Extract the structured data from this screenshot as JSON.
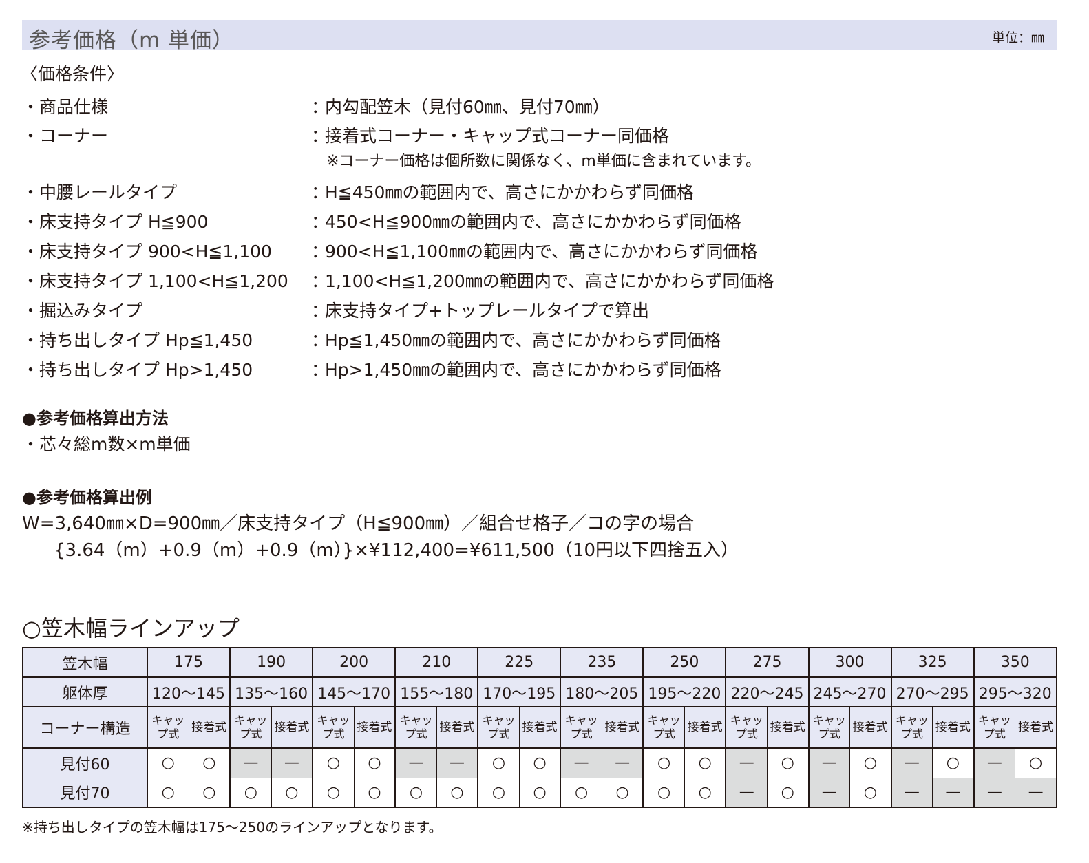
{
  "header": {
    "title": "参考価格（m 単価）",
    "unit": "単位：㎜"
  },
  "conditions": {
    "heading": "〈価格条件〉",
    "items": [
      {
        "label": "・商品仕様",
        "value": "内勾配笠木（見付60㎜、見付70㎜）"
      },
      {
        "label": "・コーナー",
        "value": "接着式コーナー・キャップ式コーナー同価格"
      },
      {
        "label": "・中腰レールタイプ",
        "value": "H≦450㎜の範囲内で、高さにかかわらず同価格"
      },
      {
        "label": "・床支持タイプ H≦900",
        "value": "450<H≦900㎜の範囲内で、高さにかかわらず同価格"
      },
      {
        "label": "・床支持タイプ 900<H≦1,100",
        "value": "900<H≦1,100㎜の範囲内で、高さにかかわらず同価格"
      },
      {
        "label": "・床支持タイプ 1,100<H≦1,200",
        "value": "1,100<H≦1,200㎜の範囲内で、高さにかかわらず同価格"
      },
      {
        "label": "・掘込みタイプ",
        "value": "床支持タイプ+トップレールタイプで算出"
      },
      {
        "label": "・持ち出しタイプ Hp≦1,450",
        "value": "Hp≦1,450㎜の範囲内で、高さにかかわらず同価格"
      },
      {
        "label": "・持ち出しタイプ Hp>1,450",
        "value": "Hp>1,450㎜の範囲内で、高さにかかわらず同価格"
      }
    ],
    "corner_note": "※コーナー価格は個所数に関係なく、m単価に含まれています。",
    "colon": "："
  },
  "method": {
    "heading": "●参考価格算出方法",
    "text": "・芯々総m数×m単価"
  },
  "example": {
    "heading": "●参考価格算出例",
    "line1": "W=3,640㎜×D=900㎜／床支持タイプ（H≦900㎜）／組合せ格子／コの字の場合",
    "line2": "{3.64（m）+0.9（m）+0.9（m）}×¥112,400=¥611,500（10円以下四捨五入）"
  },
  "lineup": {
    "heading": "○笠木幅ラインアップ",
    "row_labels": {
      "width": "笠木幅",
      "body": "躯体厚",
      "corner": "コーナー構造",
      "m60": "見付60",
      "m70": "見付70"
    },
    "widths": [
      "175",
      "190",
      "200",
      "210",
      "225",
      "235",
      "250",
      "275",
      "300",
      "325",
      "350"
    ],
    "body": [
      "120〜145",
      "135〜160",
      "145〜170",
      "155〜180",
      "170〜195",
      "180〜205",
      "195〜220",
      "220〜245",
      "245〜270",
      "270〜295",
      "295〜320"
    ],
    "corner_types": [
      "キャップ式",
      "接着式"
    ],
    "m60": [
      "○",
      "○",
      "—",
      "—",
      "○",
      "○",
      "—",
      "—",
      "○",
      "○",
      "—",
      "—",
      "○",
      "○",
      "—",
      "○",
      "—",
      "○",
      "—",
      "○",
      "—",
      "○"
    ],
    "m70": [
      "○",
      "○",
      "○",
      "○",
      "○",
      "○",
      "○",
      "○",
      "○",
      "○",
      "○",
      "○",
      "○",
      "○",
      "—",
      "○",
      "—",
      "○",
      "—",
      "—",
      "—",
      "—"
    ],
    "footnote": "※持ち出しタイプの笠木幅は175〜250のラインアップとなります。",
    "colors": {
      "header_bg": "#e6e8f5",
      "unavailable_bg": "#dcdddd",
      "title_bg": "#dde0f2"
    }
  }
}
